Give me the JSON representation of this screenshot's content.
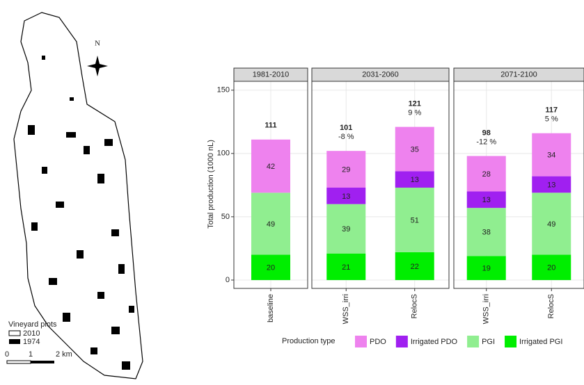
{
  "map": {
    "north": "N",
    "legend_title": "Vineyard plots",
    "legend_items": [
      "2010",
      "1974"
    ],
    "scale_labels": [
      "0",
      "1",
      "2 km"
    ]
  },
  "chart_data": {
    "type": "bar",
    "stacked": true,
    "y_label": "Total production (1000 nL)",
    "ylim": [
      -6.6,
      157
    ],
    "yticks": [
      0,
      50,
      100,
      150
    ],
    "grid": true,
    "legend_title": "Production type",
    "series": [
      {
        "name": "PDO",
        "color": "#ee82ee"
      },
      {
        "name": "Irrigated PDO",
        "color": "#a020f0"
      },
      {
        "name": "PGI",
        "color": "#90ee90"
      },
      {
        "name": "Irrigated PGI",
        "color": "#00ee00"
      }
    ],
    "facets": [
      {
        "title": "1981-2010",
        "categories": [
          "baseline"
        ],
        "values": [
          [
            42
          ],
          [
            null
          ],
          [
            49
          ],
          [
            20
          ]
        ],
        "totals": [
          111
        ],
        "changes": {
          "values": [
            null
          ],
          "value_labels": [
            null
          ]
        }
      },
      {
        "title": "2031-2060",
        "categories": [
          "WSS_irri",
          "RelocS"
        ],
        "values": [
          [
            29,
            35
          ],
          [
            13,
            13
          ],
          [
            39,
            51
          ],
          [
            21,
            22
          ]
        ],
        "totals": [
          101,
          121
        ],
        "changes": {
          "values": [
            -8,
            9
          ],
          "value_labels": [
            "-8 %",
            "9 %"
          ]
        }
      },
      {
        "title": "2071-2100",
        "categories": [
          "WSS_irri",
          "RelocS"
        ],
        "values": [
          [
            28,
            34
          ],
          [
            13,
            13
          ],
          [
            38,
            49
          ],
          [
            19,
            20
          ]
        ],
        "totals": [
          98,
          117
        ],
        "changes": {
          "values": [
            -12,
            5
          ],
          "value_labels": [
            "-12 %",
            "5 %"
          ]
        }
      }
    ]
  }
}
